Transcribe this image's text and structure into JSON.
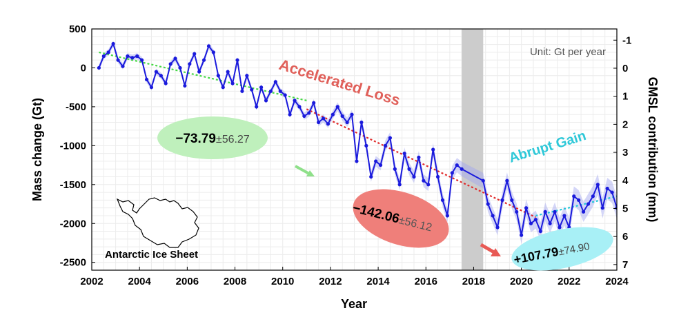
{
  "chart_data": {
    "type": "line",
    "title": "",
    "xlabel": "Year",
    "ylabel": "Mass change (Gt)",
    "y2label": "GMSL contribution (mm)",
    "unit_note": "Unit: Gt per year",
    "xlim": [
      2002,
      2024
    ],
    "ylim": [
      -2600,
      500
    ],
    "y2lim": [
      7.2,
      -1.4
    ],
    "xticks": [
      2002,
      2004,
      2006,
      2008,
      2010,
      2012,
      2014,
      2016,
      2018,
      2020,
      2022,
      2024
    ],
    "yticks": [
      500,
      0,
      -500,
      -1000,
      -1500,
      -2000,
      -2500
    ],
    "y2ticks": [
      -1,
      0,
      1,
      2,
      3,
      4,
      5,
      6,
      7
    ],
    "gap_period": [
      2017.5,
      2018.4
    ],
    "grid": true,
    "series": [
      {
        "color": "#1a1adc",
        "band_color": "#9fa3f0",
        "x": [
          2002.3,
          2002.5,
          2002.7,
          2002.9,
          2003.1,
          2003.3,
          2003.5,
          2003.7,
          2003.9,
          2004.1,
          2004.3,
          2004.5,
          2004.7,
          2004.9,
          2005.1,
          2005.3,
          2005.5,
          2005.7,
          2005.9,
          2006.1,
          2006.3,
          2006.5,
          2006.7,
          2006.9,
          2007.1,
          2007.3,
          2007.5,
          2007.7,
          2007.9,
          2008.1,
          2008.3,
          2008.5,
          2008.7,
          2008.9,
          2009.1,
          2009.3,
          2009.5,
          2009.7,
          2009.9,
          2010.1,
          2010.3,
          2010.5,
          2010.7,
          2010.9,
          2011.1,
          2011.3,
          2011.5,
          2011.7,
          2011.9,
          2012.1,
          2012.3,
          2012.5,
          2012.7,
          2012.9,
          2013.1,
          2013.3,
          2013.5,
          2013.7,
          2013.9,
          2014.1,
          2014.3,
          2014.5,
          2014.7,
          2014.9,
          2015.1,
          2015.3,
          2015.5,
          2015.7,
          2015.9,
          2016.1,
          2016.3,
          2016.5,
          2016.7,
          2016.9,
          2017.1,
          2017.3,
          2017.5,
          2018.4,
          2018.6,
          2018.8,
          2019.0,
          2019.2,
          2019.4,
          2019.6,
          2019.8,
          2020.0,
          2020.2,
          2020.4,
          2020.6,
          2020.8,
          2021.0,
          2021.2,
          2021.4,
          2021.6,
          2021.8,
          2022.0,
          2022.2,
          2022.4,
          2022.6,
          2022.8,
          2023.0,
          2023.2,
          2023.4,
          2023.6,
          2023.8,
          2024.0
        ],
        "y": [
          0,
          150,
          200,
          310,
          100,
          20,
          150,
          130,
          150,
          100,
          -150,
          -250,
          -50,
          -100,
          -200,
          50,
          120,
          0,
          -230,
          50,
          180,
          -50,
          100,
          280,
          200,
          -100,
          -250,
          -50,
          -200,
          100,
          -300,
          -100,
          -280,
          -500,
          -250,
          -420,
          -300,
          -180,
          -300,
          -350,
          -600,
          -420,
          -500,
          -620,
          -580,
          -450,
          -700,
          -650,
          -720,
          -600,
          -500,
          -620,
          -700,
          -600,
          -1200,
          -700,
          -1000,
          -1400,
          -1200,
          -1250,
          -1000,
          -900,
          -1300,
          -1500,
          -1100,
          -1300,
          -1400,
          -1150,
          -1450,
          -1500,
          -1050,
          -1400,
          -1700,
          -1900,
          -1350,
          -1250,
          -1300,
          -1450,
          -1750,
          -1900,
          -2050,
          -1700,
          -1450,
          -1700,
          -1850,
          -2150,
          -1800,
          -2000,
          -1950,
          -2100,
          -1850,
          -2000,
          -1850,
          -2050,
          -1900,
          -2050,
          -1650,
          -1700,
          -1850,
          -1750,
          -1650,
          -1500,
          -1800,
          -1550,
          -1600,
          -1800
        ]
      }
    ],
    "trendlines": [
      {
        "color": "#46d846",
        "from": [
          2002.3,
          200
        ],
        "to": [
          2011.0,
          -420
        ]
      },
      {
        "color": "#e02a2a",
        "from": [
          2011.0,
          -530
        ],
        "to": [
          2020.6,
          -1920
        ]
      },
      {
        "color": "#22c8d8",
        "from": [
          2020.6,
          -1900
        ],
        "to": [
          2024.0,
          -1650
        ]
      }
    ],
    "annotations": {
      "accel_label": "Accelerated Loss",
      "accel_color": "#e0605a",
      "gain_label": "Abrupt Gain",
      "gain_color": "#2ec8d8",
      "rate1_value": "−73.79",
      "rate1_err": "±56.27",
      "rate1_color": "#bff0bc",
      "rate2_value": "−142.06",
      "rate2_err": "±56.12",
      "rate2_color": "#ef7f7a",
      "rate3_value": "+107.79",
      "rate3_err": "±74.90",
      "rate3_color": "#a8f0f6",
      "map_label": "Antarctic Ice Sheet"
    }
  }
}
